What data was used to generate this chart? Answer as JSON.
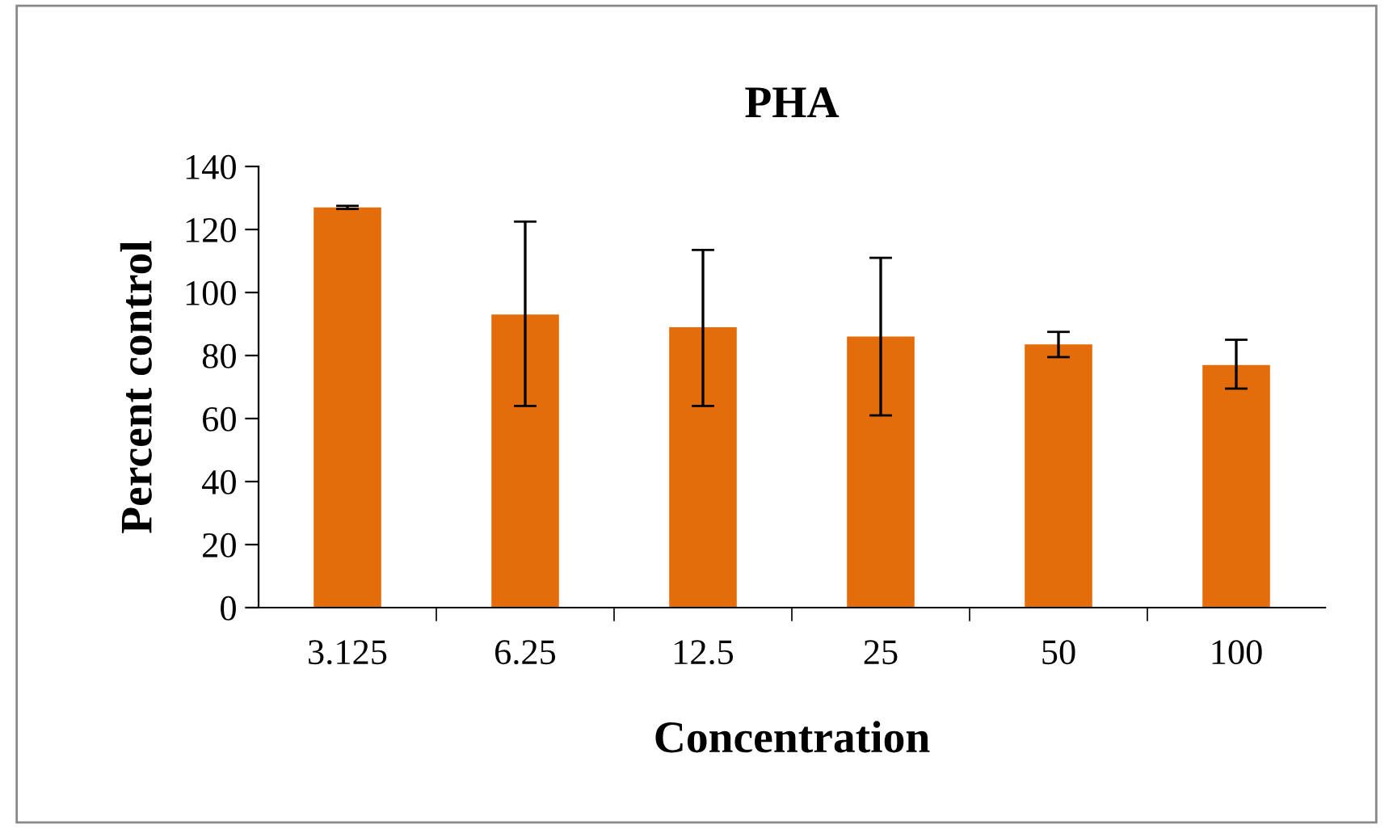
{
  "chart_data": {
    "type": "bar",
    "title": "PHA",
    "xlabel": "Concentration",
    "ylabel": "Percent control",
    "categories": [
      "3.125",
      "6.25",
      "12.5",
      "25",
      "50",
      "100"
    ],
    "values": [
      127,
      93,
      89,
      86,
      83.5,
      77
    ],
    "errors": [
      [
        126.5,
        127.5
      ],
      [
        64,
        122.5
      ],
      [
        64,
        113.5
      ],
      [
        61,
        111
      ],
      [
        79.5,
        87.5
      ],
      [
        69.5,
        85
      ]
    ],
    "color": "#e46c0a",
    "ylim": [
      0,
      140
    ],
    "yticks": [
      0,
      20,
      40,
      60,
      80,
      100,
      120,
      140
    ],
    "grid": false,
    "legend": false
  }
}
